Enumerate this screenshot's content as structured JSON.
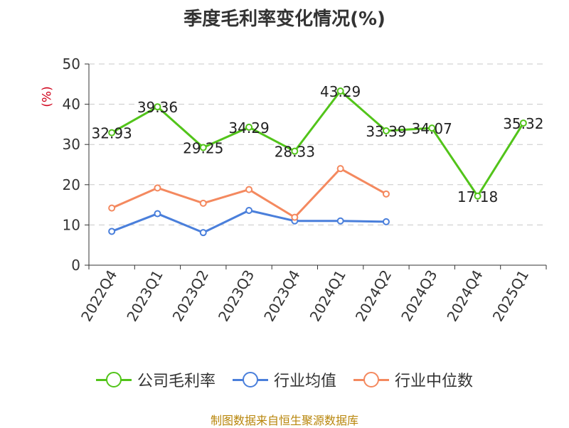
{
  "chart_data": {
    "type": "line",
    "title": "季度毛利率变化情况(%)",
    "ylabel": "(%)",
    "xlabel": "",
    "categories": [
      "2022Q4",
      "2023Q1",
      "2023Q2",
      "2023Q3",
      "2023Q4",
      "2024Q1",
      "2024Q2",
      "2024Q3",
      "2024Q4",
      "2025Q1"
    ],
    "ylim": [
      0,
      50
    ],
    "yticks": [
      0,
      10,
      20,
      30,
      40,
      50
    ],
    "grid": true,
    "legend_position": "bottom",
    "series": [
      {
        "name": "公司毛利率",
        "color": "#52c41a",
        "show_labels": true,
        "values": [
          32.93,
          39.36,
          29.25,
          34.29,
          28.33,
          43.29,
          33.39,
          34.07,
          17.18,
          35.32
        ],
        "labels": [
          "32.93",
          "39.36",
          "29.25",
          "34.29",
          "28.33",
          "43.29",
          "33.39",
          "34.07",
          "17.18",
          "35.32"
        ]
      },
      {
        "name": "行业均值",
        "color": "#4a7fdb",
        "show_labels": false,
        "values": [
          8.4,
          12.8,
          8.1,
          13.6,
          11.0,
          11.0,
          10.8,
          null,
          null,
          null
        ]
      },
      {
        "name": "行业中位数",
        "color": "#f4895f",
        "show_labels": false,
        "values": [
          14.2,
          19.2,
          15.4,
          18.8,
          11.9,
          24.0,
          17.7,
          null,
          null,
          null
        ]
      }
    ]
  },
  "footer": {
    "source": "制图数据来自恒生聚源数据库"
  }
}
